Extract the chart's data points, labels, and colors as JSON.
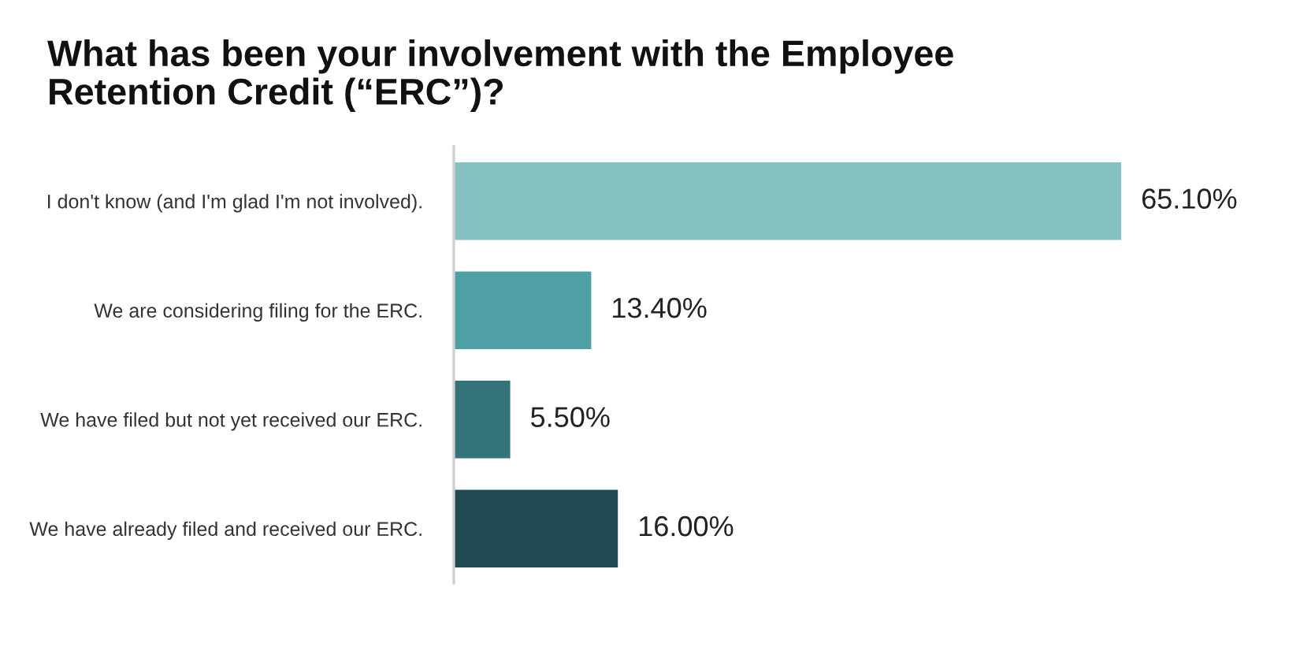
{
  "chart_data": {
    "type": "bar",
    "orientation": "horizontal",
    "title": "What has been your involvement with the Employee\nRetention Credit (“ERC”)?",
    "categories": [
      "I don't know (and I'm glad I'm not involved).",
      "We are considering filing for the ERC.",
      "We have filed but not yet received our ERC.",
      "We have already filed and received our ERC."
    ],
    "values": [
      65.1,
      13.4,
      5.5,
      16.0
    ],
    "colors": [
      "#85c2c1",
      "#4f9fa6",
      "#35737b",
      "#1f4a52"
    ],
    "value_labels": [
      "65.10%",
      "13.40%",
      "5.50%",
      "16.00%"
    ],
    "tick_labels": "y"
  }
}
